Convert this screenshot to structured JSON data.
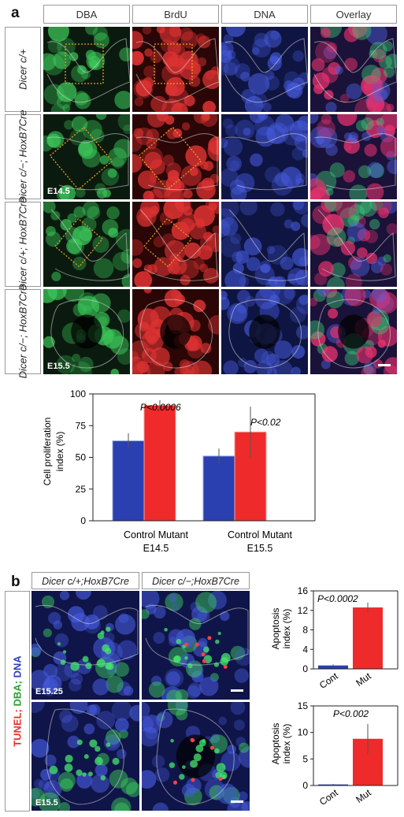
{
  "panel_a": {
    "letter": "a",
    "columns": [
      "DBA",
      "BrdU",
      "DNA",
      "Overlay"
    ],
    "rows": [
      {
        "genotype": "Dicer c/+",
        "stage": ""
      },
      {
        "genotype": "Dicer c/−; HoxB7Cre",
        "stage": "E14.5"
      },
      {
        "genotype": "Dicer c/+; HoxB7Cre",
        "stage": ""
      },
      {
        "genotype": "Dicer c/−; HoxB7Cre",
        "stage": "E15.5"
      }
    ]
  },
  "proliferation_chart": {
    "ylabel_line1": "Cell proliferation",
    "ylabel_line2": "index (%)",
    "y_ticks": [
      "0",
      "25",
      "50",
      "75",
      "100"
    ],
    "group_labels": [
      {
        "line1": "Control Mutant",
        "line2": "E14.5"
      },
      {
        "line1": "Control Mutant",
        "line2": "E15.5"
      }
    ],
    "pvalues": [
      "P<0.0006",
      "P<0.02"
    ]
  },
  "panel_b": {
    "letter": "b",
    "columns": [
      "Dicer c/+;HoxB7Cre",
      "Dicer c/−;HoxB7Cre"
    ],
    "side_label_parts": [
      {
        "text": "TUNEL;",
        "color": "#e8302c"
      },
      {
        "text": " DBA;",
        "color": "#24a136"
      },
      {
        "text": " DNA",
        "color": "#2f3fb8"
      }
    ],
    "stages": [
      "E15.25",
      "E15.5"
    ]
  },
  "apoptosis_charts": [
    {
      "ylabel_line1": "Apoptosis",
      "ylabel_line2": "index (%)",
      "y_ticks": [
        "0",
        "4",
        "8",
        "12",
        "16"
      ],
      "pvalue": "P<0.0002",
      "categories": [
        "Cont",
        "Mut"
      ]
    },
    {
      "ylabel_line1": "Apoptosis",
      "ylabel_line2": "index (%)",
      "y_ticks": [
        "0",
        "5",
        "10",
        "15"
      ],
      "pvalue": "P<0.002",
      "categories": [
        "Cont",
        "Mut"
      ]
    }
  ],
  "colors": {
    "control": "#2a3fb0",
    "mutant": "#ee2a2a"
  },
  "chart_data": [
    {
      "type": "bar",
      "ylabel": "Cell proliferation index (%)",
      "ylim": [
        0,
        100
      ],
      "categories": [
        "Control E14.5",
        "Mutant E14.5",
        "Control E15.5",
        "Mutant E15.5"
      ],
      "values": [
        63,
        91,
        51,
        70
      ],
      "errors": [
        6,
        4,
        6,
        20
      ],
      "colors": [
        "#2a3fb0",
        "#ee2a2a",
        "#2a3fb0",
        "#ee2a2a"
      ],
      "annotations": [
        "P<0.0006",
        "P<0.02"
      ]
    },
    {
      "type": "bar",
      "ylabel": "Apoptosis index (%)",
      "ylim": [
        0,
        16
      ],
      "categories": [
        "Cont",
        "Mut"
      ],
      "values": [
        0.7,
        12.6
      ],
      "errors": [
        0.2,
        1.0
      ],
      "colors": [
        "#2a3fb0",
        "#ee2a2a"
      ],
      "annotations": [
        "P<0.0002"
      ]
    },
    {
      "type": "bar",
      "ylabel": "Apoptosis index (%)",
      "ylim": [
        0,
        15
      ],
      "categories": [
        "Cont",
        "Mut"
      ],
      "values": [
        0.2,
        8.8
      ],
      "errors": [
        0.1,
        2.8
      ],
      "colors": [
        "#2a3fb0",
        "#ee2a2a"
      ],
      "annotations": [
        "P<0.002"
      ]
    }
  ]
}
